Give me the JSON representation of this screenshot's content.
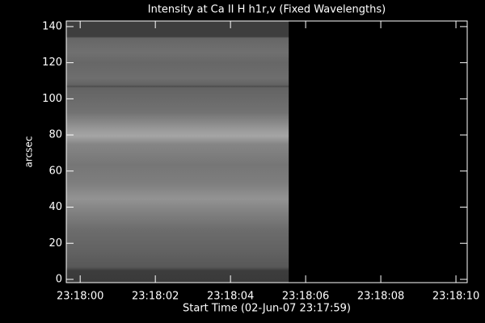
{
  "chart_data": {
    "type": "image",
    "title": "Intensity at Ca II H h1r,v (Fixed Wavelengths)",
    "xlabel": "Start Time (02-Jun-07 23:17:59)",
    "ylabel": "arcsec",
    "xlim": [
      "23:17:59.63",
      "23:18:10.3"
    ],
    "xticks": [
      "23:18:00",
      "23:18:02",
      "23:18:04",
      "23:18:06",
      "23:18:08",
      "23:18:10"
    ],
    "ylim": [
      -1.8,
      143.1
    ],
    "yticks": [
      0,
      20,
      40,
      60,
      80,
      100,
      120,
      140
    ],
    "image_xrange": [
      "23:17:59.63",
      "23:18:05.55"
    ],
    "image_yrange": [
      -1.8,
      143.1
    ],
    "colormap": "gray"
  }
}
